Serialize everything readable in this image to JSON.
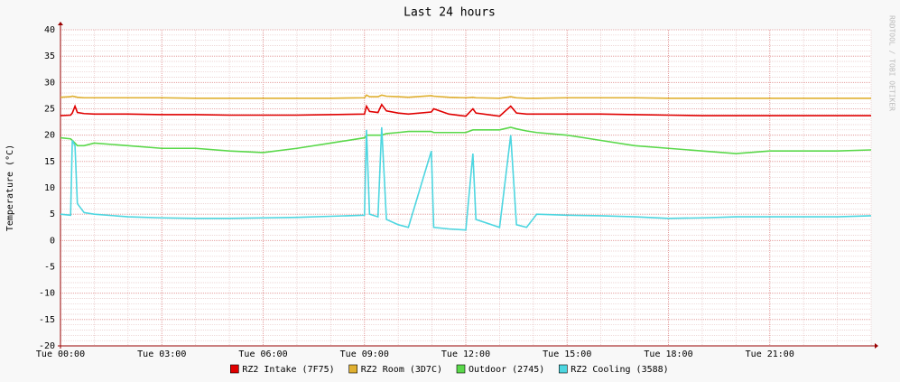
{
  "chart_data": {
    "type": "line",
    "title": "Last 24 hours",
    "y_label": "Temperature (°C)",
    "watermark": "RRDTOOL / TOBI OETIKER",
    "x": [
      0,
      0.3,
      0.35,
      0.43,
      0.5,
      0.7,
      1,
      2,
      3,
      4,
      5,
      6,
      7,
      8,
      9,
      9.06,
      9.15,
      9.4,
      9.51,
      9.65,
      10,
      10.3,
      10.98,
      11.05,
      11.5,
      12,
      12.21,
      12.3,
      13,
      13.33,
      13.5,
      13.8,
      14.1,
      15,
      16,
      17,
      18,
      19,
      20,
      21,
      22,
      23,
      24
    ],
    "xlim": [
      0,
      24
    ],
    "xticks": [
      {
        "value": 0,
        "label": "Tue 00:00"
      },
      {
        "value": 3,
        "label": "Tue 03:00"
      },
      {
        "value": 6,
        "label": "Tue 06:00"
      },
      {
        "value": 9,
        "label": "Tue 09:00"
      },
      {
        "value": 12,
        "label": "Tue 12:00"
      },
      {
        "value": 15,
        "label": "Tue 15:00"
      },
      {
        "value": 18,
        "label": "Tue 18:00"
      },
      {
        "value": 21,
        "label": "Tue 21:00"
      }
    ],
    "ylim": [
      -20,
      40
    ],
    "yticks": [
      -20,
      -15,
      -10,
      -5,
      0,
      5,
      10,
      15,
      20,
      25,
      30,
      35,
      40
    ],
    "grid": true,
    "series": [
      {
        "name": "RZ2 Intake (7F75)",
        "color": "#e00000",
        "values": [
          23.7,
          23.8,
          24.2,
          25.5,
          24.3,
          24.1,
          24,
          24,
          23.9,
          23.9,
          23.8,
          23.8,
          23.8,
          23.9,
          24,
          25.5,
          24.5,
          24.3,
          25.8,
          24.6,
          24.2,
          24,
          24.4,
          25,
          24,
          23.6,
          25,
          24.2,
          23.6,
          25.5,
          24.2,
          24,
          24,
          24,
          24,
          23.9,
          23.8,
          23.7,
          23.7,
          23.7,
          23.7,
          23.7,
          23.7
        ]
      },
      {
        "name": "RZ2 Room (3D7C)",
        "color": "#e0b030",
        "values": [
          27.2,
          27.3,
          27.4,
          27.3,
          27.2,
          27.1,
          27.1,
          27.1,
          27.1,
          27,
          27,
          27,
          27,
          27,
          27.1,
          27.6,
          27.3,
          27.3,
          27.6,
          27.4,
          27.3,
          27.2,
          27.5,
          27.4,
          27.2,
          27.1,
          27.2,
          27.1,
          27,
          27.3,
          27.1,
          27,
          27,
          27.1,
          27.1,
          27.1,
          27,
          27,
          27,
          27,
          27,
          27,
          27
        ]
      },
      {
        "name": "Outdoor (2745)",
        "color": "#5ad84a",
        "values": [
          19.5,
          19.3,
          19,
          18.5,
          18,
          18,
          18.5,
          18,
          17.5,
          17.5,
          17,
          16.7,
          17.5,
          18.5,
          19.5,
          20,
          20,
          20,
          20,
          20.3,
          20.5,
          20.7,
          20.7,
          20.5,
          20.5,
          20.5,
          21,
          21,
          21,
          21.5,
          21.2,
          20.8,
          20.5,
          20,
          19,
          18,
          17.5,
          17,
          16.5,
          17,
          17,
          17,
          17.2
        ]
      },
      {
        "name": "RZ2 Cooling (3588)",
        "color": "#4dd6e0",
        "values": [
          5,
          4.8,
          19,
          18,
          7,
          5.3,
          5,
          4.5,
          4.3,
          4.2,
          4.2,
          4.3,
          4.4,
          4.6,
          4.8,
          21,
          5,
          4.5,
          21.5,
          4,
          3,
          2.5,
          17,
          2.5,
          2.2,
          2,
          16.5,
          4,
          2.5,
          20,
          3,
          2.5,
          5,
          4.8,
          4.7,
          4.5,
          4.2,
          4.3,
          4.5,
          4.5,
          4.5,
          4.5,
          4.7
        ]
      }
    ]
  }
}
